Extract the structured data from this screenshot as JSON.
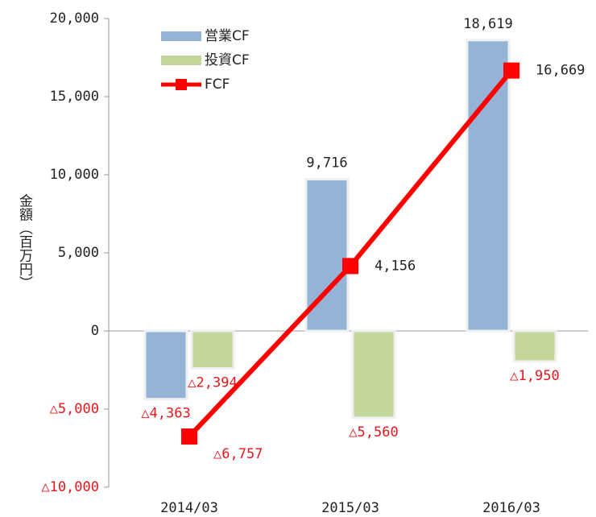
{
  "chart_data": {
    "type": "bar",
    "y_label": "金額（百万円）",
    "categories": [
      "2014/03",
      "2015/03",
      "2016/03"
    ],
    "series": [
      {
        "name": "営業CF",
        "type": "bar",
        "color": "#95b3d7",
        "values": [
          -4363,
          9716,
          18619
        ],
        "value_labels": [
          "△4,363",
          "9,716",
          "18,619"
        ]
      },
      {
        "name": "投資CF",
        "type": "bar",
        "color": "#c3d69b",
        "values": [
          -2394,
          -5560,
          -1950
        ],
        "value_labels": [
          "△2,394",
          "△5,560",
          "△1,950"
        ]
      },
      {
        "name": "FCF",
        "type": "line",
        "color": "#ff0000",
        "values": [
          -6757,
          4156,
          16669
        ],
        "value_labels": [
          "△6,757",
          "4,156",
          "16,669"
        ]
      }
    ],
    "ylim": [
      -10000,
      20000
    ],
    "yticks": [
      {
        "value": -10000,
        "label": "△10,000"
      },
      {
        "value": -5000,
        "label": "△5,000"
      },
      0,
      {
        "value": 5000,
        "label": "5,000"
      },
      {
        "value": 10000,
        "label": "10,000"
      },
      {
        "value": 15000,
        "label": "15,000"
      },
      {
        "value": 20000,
        "label": "20,000"
      }
    ],
    "negative_label_color": "#e8171d",
    "legend": "upper left"
  }
}
